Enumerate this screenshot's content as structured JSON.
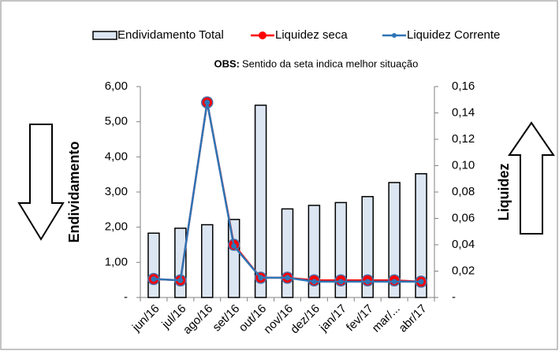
{
  "chart_data": {
    "type": "bar",
    "annotation_label": "OBS:",
    "annotation": "Sentido da seta indica melhor situação",
    "y_label": "Endividamento",
    "y2_label": "Liquidez",
    "categories": [
      "jun/16",
      "jul/16",
      "ago/16",
      "set/16",
      "out/16",
      "nov/16",
      "dez/16",
      "jan/17",
      "fev/17",
      "mar/...",
      "abr/17"
    ],
    "series": [
      {
        "name": "Endividamento Total",
        "type": "bar",
        "color": "#dce6f2",
        "values": [
          1.83,
          1.97,
          2.07,
          2.22,
          5.47,
          2.52,
          2.62,
          2.7,
          2.87,
          3.27,
          3.52
        ]
      },
      {
        "name": "Liquidez seca",
        "type": "line",
        "axis": "y2",
        "color": "#ff0000",
        "values": [
          0.014,
          0.013,
          0.148,
          0.04,
          0.015,
          0.015,
          0.013,
          0.013,
          0.013,
          0.013,
          0.012
        ]
      },
      {
        "name": "Liquidez Corrente",
        "type": "line",
        "axis": "y2",
        "color": "#2e75b6",
        "values": [
          0.014,
          0.013,
          0.148,
          0.039,
          0.015,
          0.015,
          0.012,
          0.012,
          0.012,
          0.012,
          0.012
        ]
      }
    ],
    "ylim": [
      0,
      6
    ],
    "yticks": [
      {
        "value": 0,
        "label": "-"
      },
      {
        "value": 1,
        "label": "1,00"
      },
      {
        "value": 2,
        "label": "2,00"
      },
      {
        "value": 3,
        "label": "3,00"
      },
      {
        "value": 4,
        "label": "4,00"
      },
      {
        "value": 5,
        "label": "5,00"
      },
      {
        "value": 6,
        "label": "6,00"
      }
    ],
    "y2lim": [
      0,
      0.16
    ],
    "y2ticks": [
      {
        "value": 0,
        "label": "-"
      },
      {
        "value": 0.02,
        "label": "0,02"
      },
      {
        "value": 0.04,
        "label": "0,04"
      },
      {
        "value": 0.06,
        "label": "0,06"
      },
      {
        "value": 0.08,
        "label": "0,08"
      },
      {
        "value": 0.1,
        "label": "0,10"
      },
      {
        "value": 0.12,
        "label": "0,12"
      },
      {
        "value": 0.14,
        "label": "0,14"
      },
      {
        "value": 0.16,
        "label": "0,16"
      }
    ]
  }
}
